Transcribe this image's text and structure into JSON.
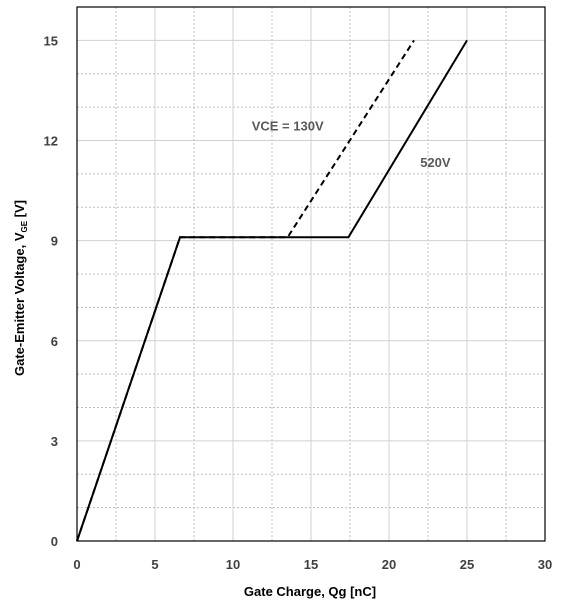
{
  "chart_data": {
    "type": "line",
    "xlabel": "Gate Charge, Qg [nC]",
    "ylabel": {
      "main": "Gate-Emitter Voltage, V",
      "sub": "GE",
      "unit": " [V]"
    },
    "xlim": [
      0,
      30
    ],
    "ylim": [
      0,
      16
    ],
    "x_ticks": [
      0,
      5,
      10,
      15,
      20,
      25,
      30
    ],
    "y_ticks": [
      0,
      3,
      6,
      9,
      12,
      15
    ],
    "x_minor_grid": [
      2.5,
      7.5,
      12.5,
      17.5,
      22.5,
      27.5
    ],
    "y_minor_grid": [
      1,
      2,
      4,
      5,
      7,
      8,
      10,
      11,
      13,
      14
    ],
    "grid": "minor dotted, major solid",
    "series": [
      {
        "name": "VCE = 130V",
        "style": "dashed",
        "color": "#000000",
        "x": [
          0,
          6.6,
          13.5,
          21.6
        ],
        "y": [
          0,
          9.1,
          9.1,
          15
        ]
      },
      {
        "name": "520V",
        "style": "solid",
        "color": "#000000",
        "x": [
          0,
          6.6,
          17.4,
          25.0
        ],
        "y": [
          0,
          9.1,
          9.1,
          15
        ]
      }
    ],
    "annotations": [
      {
        "text": "VCE = 130V",
        "x": 11.2,
        "y": 12.3
      },
      {
        "text": "520V",
        "x": 22.0,
        "y": 11.2
      }
    ]
  }
}
